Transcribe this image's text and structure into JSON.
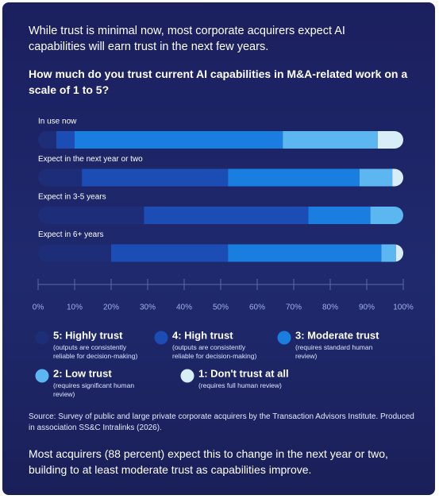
{
  "chart_data": {
    "type": "stacked-bar-horizontal",
    "subtitle": "While trust is minimal now, most corporate acquirers expect AI capabilities will earn trust in the next few years.",
    "title": "How much do you trust current AI capabilities in M&A-related work on a scale of 1 to 5?",
    "categories": [
      "In use now",
      "Expect in the next year or two",
      "Expect in 3-5 years",
      "Expect in 6+ years"
    ],
    "series": [
      {
        "name": "5: Highly trust",
        "description": "(outputs are consistently reliable for decision-making)",
        "color": "#1e2d78",
        "values": [
          5,
          12,
          29,
          20
        ]
      },
      {
        "name": "4: High trust",
        "description": "(outputs are consistently reliable for decision-making)",
        "color": "#1c4db5",
        "values": [
          5,
          40,
          45,
          32
        ]
      },
      {
        "name": "3: Moderate trust",
        "description": "(requires standard human review)",
        "color": "#1a7ee0",
        "values": [
          57,
          36,
          17,
          42
        ]
      },
      {
        "name": "2: Low trust",
        "description": "(requires significant human review)",
        "color": "#5cb6ef",
        "values": [
          26,
          9,
          9,
          4
        ]
      },
      {
        "name": "1: Don't trust at all",
        "description": "(requires full human review)",
        "color": "#d9edf9",
        "values": [
          7,
          3,
          0,
          2
        ]
      }
    ],
    "xlim": [
      0,
      100
    ],
    "xticks": [
      {
        "value": 0,
        "label": "0%"
      },
      {
        "value": 10,
        "label": "10%"
      },
      {
        "value": 20,
        "label": "20%"
      },
      {
        "value": 30,
        "label": "30%"
      },
      {
        "value": 40,
        "label": "40%"
      },
      {
        "value": 50,
        "label": "50%"
      },
      {
        "value": 60,
        "label": "60%"
      },
      {
        "value": 70,
        "label": "70%"
      },
      {
        "value": 80,
        "label": "80%"
      },
      {
        "value": 90,
        "label": "90%"
      },
      {
        "value": 100,
        "label": "100%"
      }
    ],
    "source": "Source: Survey of public and large private corporate acquirers by the Transaction Advisors Institute. Produced in association SS&C Intralinks (2026).",
    "note": "Most acquirers (88 percent) expect this to change in the next year or two, building to at least moderate trust as capabilities improve."
  }
}
